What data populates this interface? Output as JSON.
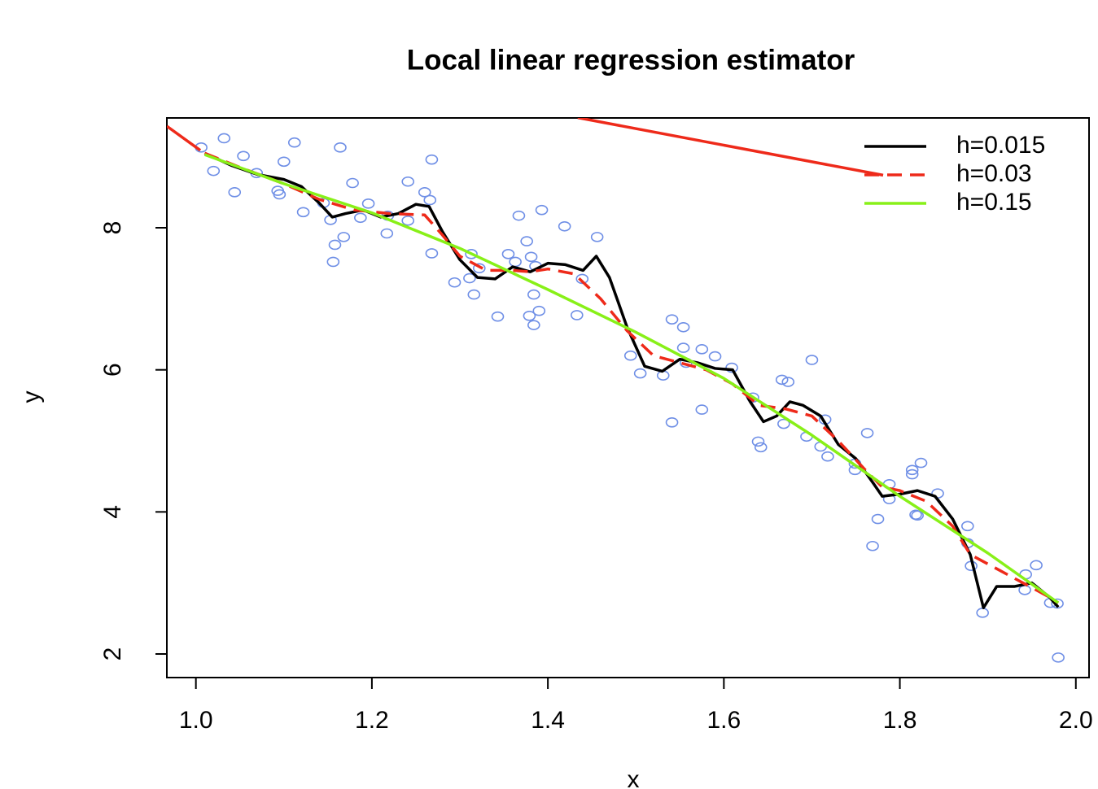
{
  "chart_data": {
    "type": "scatter",
    "title": "Local linear regression estimator",
    "x_label": "x",
    "y_label": "y",
    "xlim": [
      0.967,
      2.015
    ],
    "ylim": [
      1.668,
      9.546
    ],
    "xticks": [
      {
        "value": 1,
        "label": "1.0"
      },
      1.2,
      1.4,
      1.6,
      1.8,
      {
        "value": 2,
        "label": "2.0"
      }
    ],
    "yticks": [
      2,
      4,
      6,
      8
    ],
    "legend": "top-right",
    "series": [
      {
        "type": "points",
        "color": "#6f8fe6",
        "x": [
          1.006,
          1.02,
          1.032,
          1.044,
          1.054,
          1.069,
          1.093,
          1.095,
          1.1,
          1.112,
          1.122,
          1.145,
          1.153,
          1.156,
          1.158,
          1.164,
          1.168,
          1.178,
          1.187,
          1.196,
          1.217,
          1.218,
          1.241,
          1.241,
          1.26,
          1.266,
          1.268,
          1.268,
          1.294,
          1.311,
          1.313,
          1.316,
          1.322,
          1.343,
          1.355,
          1.363,
          1.367,
          1.376,
          1.379,
          1.381,
          1.384,
          1.384,
          1.386,
          1.39,
          1.393,
          1.419,
          1.433,
          1.439,
          1.456,
          1.494,
          1.505,
          1.531,
          1.541,
          1.541,
          1.554,
          1.554,
          1.557,
          1.575,
          1.575,
          1.59,
          1.609,
          1.633,
          1.639,
          1.642,
          1.666,
          1.668,
          1.673,
          1.694,
          1.7,
          1.71,
          1.715,
          1.718,
          1.749,
          1.749,
          1.763,
          1.769,
          1.775,
          1.788,
          1.788,
          1.814,
          1.814,
          1.818,
          1.82,
          1.824,
          1.843,
          1.877,
          1.877,
          1.881,
          1.894,
          1.942,
          1.943,
          1.955,
          1.971,
          1.979,
          1.98
        ],
        "values": [
          9.13,
          8.8,
          9.26,
          8.5,
          9.01,
          8.77,
          8.52,
          8.47,
          8.93,
          9.2,
          8.22,
          8.35,
          8.11,
          7.52,
          7.76,
          9.13,
          7.87,
          8.63,
          8.14,
          8.34,
          7.92,
          8.17,
          8.65,
          8.1,
          8.5,
          8.39,
          8.96,
          7.64,
          7.23,
          7.29,
          7.63,
          7.06,
          7.43,
          6.75,
          7.63,
          7.52,
          8.17,
          7.81,
          6.76,
          7.59,
          7.06,
          6.63,
          7.46,
          6.83,
          8.25,
          8.02,
          6.77,
          7.28,
          7.87,
          6.2,
          5.95,
          5.92,
          6.71,
          5.26,
          6.6,
          6.31,
          6.1,
          6.29,
          5.44,
          6.19,
          6.03,
          5.61,
          4.99,
          4.91,
          5.86,
          5.24,
          5.83,
          5.06,
          6.14,
          4.92,
          5.3,
          4.78,
          4.59,
          4.68,
          5.11,
          3.52,
          3.9,
          4.39,
          4.18,
          4.59,
          4.53,
          3.96,
          3.95,
          4.69,
          4.26,
          3.8,
          3.56,
          3.24,
          2.58,
          2.9,
          3.12,
          3.25,
          2.72,
          2.71,
          1.95
        ]
      },
      {
        "type": "line",
        "color": "#ee2a1a",
        "x": [
          0.967,
          1.005,
          1.2,
          1.434,
          1.781
        ],
        "values": [
          9.43,
          9.09,
          null,
          9.55,
          8.74
        ]
      },
      {
        "type": "line",
        "name": "h=0.015",
        "color": "#000000",
        "x": [
          1.01,
          1.04,
          1.07,
          1.1,
          1.12,
          1.14,
          1.155,
          1.17,
          1.19,
          1.21,
          1.23,
          1.25,
          1.265,
          1.28,
          1.3,
          1.32,
          1.34,
          1.36,
          1.38,
          1.4,
          1.42,
          1.44,
          1.455,
          1.47,
          1.49,
          1.51,
          1.53,
          1.55,
          1.57,
          1.59,
          1.61,
          1.63,
          1.645,
          1.66,
          1.675,
          1.69,
          1.71,
          1.73,
          1.75,
          1.77,
          1.78,
          1.8,
          1.82,
          1.84,
          1.86,
          1.88,
          1.895,
          1.91,
          1.93,
          1.95,
          1.97,
          1.98
        ],
        "values": [
          9.05,
          8.88,
          8.75,
          8.68,
          8.58,
          8.35,
          8.15,
          8.2,
          8.25,
          8.15,
          8.2,
          8.33,
          8.3,
          7.95,
          7.55,
          7.3,
          7.28,
          7.45,
          7.38,
          7.5,
          7.48,
          7.4,
          7.6,
          7.3,
          6.6,
          6.05,
          5.98,
          6.15,
          6.1,
          6.02,
          6.0,
          5.55,
          5.27,
          5.35,
          5.55,
          5.5,
          5.35,
          4.95,
          4.75,
          4.4,
          4.22,
          4.25,
          4.3,
          4.22,
          3.9,
          3.4,
          2.65,
          2.95,
          2.95,
          3.0,
          2.8,
          2.66
        ]
      },
      {
        "type": "line",
        "name": "h=0.03",
        "color": "#ee2a1a",
        "dash": true,
        "x": [
          1.01,
          1.05,
          1.1,
          1.14,
          1.18,
          1.22,
          1.26,
          1.28,
          1.3,
          1.33,
          1.36,
          1.38,
          1.4,
          1.43,
          1.46,
          1.49,
          1.52,
          1.55,
          1.58,
          1.61,
          1.64,
          1.67,
          1.7,
          1.73,
          1.76,
          1.78,
          1.8,
          1.83,
          1.86,
          1.88,
          1.91,
          1.94,
          1.97,
          1.98
        ],
        "values": [
          9.05,
          8.85,
          8.62,
          8.4,
          8.25,
          8.2,
          8.18,
          7.9,
          7.6,
          7.4,
          7.4,
          7.38,
          7.42,
          7.35,
          7.0,
          6.55,
          6.2,
          6.1,
          6.0,
          5.8,
          5.5,
          5.45,
          5.35,
          5.0,
          4.6,
          4.35,
          4.3,
          4.15,
          3.8,
          3.4,
          3.2,
          3.0,
          2.8,
          2.72
        ]
      },
      {
        "type": "line",
        "name": "h=0.15",
        "color": "#88f018",
        "x": [
          1.01,
          1.1,
          1.2,
          1.3,
          1.4,
          1.5,
          1.6,
          1.7,
          1.8,
          1.9,
          1.98
        ],
        "values": [
          9.03,
          8.62,
          8.21,
          7.71,
          7.13,
          6.53,
          5.88,
          5.08,
          4.22,
          3.42,
          2.72
        ]
      }
    ]
  }
}
